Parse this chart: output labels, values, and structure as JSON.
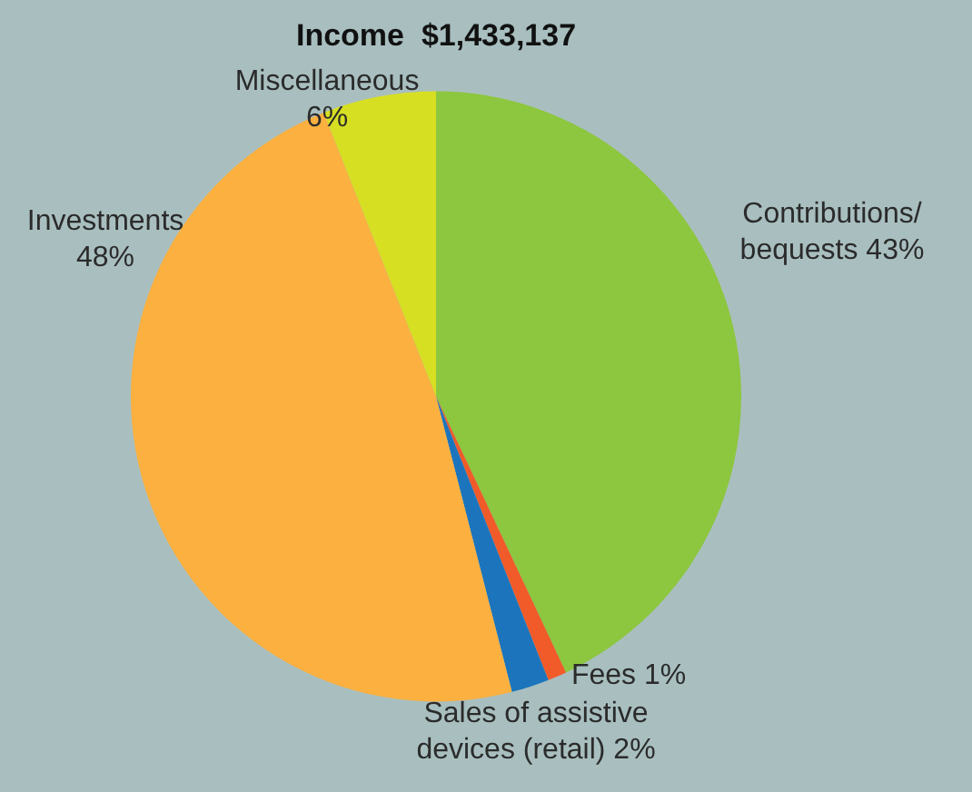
{
  "chart_data": {
    "type": "pie",
    "title": "Income  $1,433,137",
    "categories": [
      "Contributions/ bequests",
      "Fees",
      "Sales of assistive devices (retail)",
      "Investments",
      "Miscellaneous"
    ],
    "values": [
      43,
      1,
      2,
      48,
      6
    ],
    "colors": [
      "#8dc63f",
      "#f15a29",
      "#1c75bc",
      "#fbb040",
      "#d7df23"
    ],
    "value_labels": [
      "43%",
      "1%",
      "2%",
      "48%",
      "6%"
    ],
    "legend": false
  }
}
